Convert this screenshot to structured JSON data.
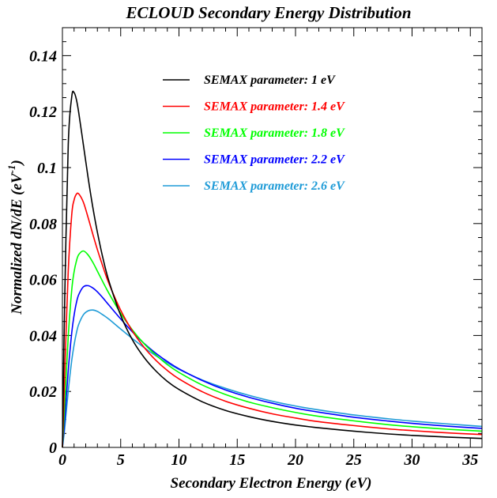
{
  "chart_data": {
    "type": "line",
    "title": "ECLOUD Secondary Energy Distribution",
    "xlabel": "Secondary Electron Energy (eV)",
    "ylabel": "Normalized dN/dE (eV",
    "ylabel_sup": "-1",
    "ylabel_suffix": ")",
    "xlim": [
      0,
      36
    ],
    "ylim": [
      0,
      0.15
    ],
    "x_ticks": [
      0,
      5,
      10,
      15,
      20,
      25,
      30,
      35
    ],
    "x_tick_labels": [
      "0",
      "5",
      "10",
      "15",
      "20",
      "25",
      "30",
      "35"
    ],
    "y_ticks": [
      0,
      0.02,
      0.04,
      0.06,
      0.08,
      0.1,
      0.12,
      0.14
    ],
    "y_tick_labels": [
      "0",
      "0.02",
      "0.04",
      "0.06",
      "0.08",
      "0.1",
      "0.12",
      "0.14"
    ],
    "grid": false,
    "legend_position": "top-right",
    "x": [
      0,
      0.2,
      0.5,
      0.8,
      1,
      1.2,
      1.4,
      1.8,
      2.2,
      2.6,
      3,
      3.5,
      4,
      5,
      6,
      7,
      8,
      9,
      10,
      12,
      14,
      16,
      18,
      20,
      22,
      25,
      28,
      30,
      33,
      36
    ],
    "series": [
      {
        "name": "SEMAX parameter: 1 eV",
        "color": "#000000",
        "values": [
          0,
          0.0535,
          0.1082,
          0.1253,
          0.1268,
          0.1243,
          0.1196,
          0.1081,
          0.0965,
          0.086,
          0.0769,
          0.0672,
          0.0593,
          0.0472,
          0.0385,
          0.0322,
          0.0274,
          0.0236,
          0.0207,
          0.0163,
          0.0132,
          0.011,
          0.0093,
          0.008,
          0.007,
          0.0058,
          0.0048,
          0.0043,
          0.0037,
          0.0032
        ]
      },
      {
        "name": "SEMAX parameter: 1.4 eV",
        "color": "#ff0000",
        "values": [
          0,
          0.0264,
          0.0631,
          0.0832,
          0.0884,
          0.0905,
          0.0906,
          0.0876,
          0.0822,
          0.0763,
          0.0707,
          0.0643,
          0.0585,
          0.049,
          0.0416,
          0.0358,
          0.0312,
          0.0275,
          0.0245,
          0.0199,
          0.0165,
          0.014,
          0.012,
          0.0105,
          0.0092,
          0.0078,
          0.0066,
          0.006,
          0.0052,
          0.0046
        ]
      },
      {
        "name": "SEMAX parameter: 1.8 eV",
        "color": "#00ff00",
        "values": [
          0,
          0.0154,
          0.0397,
          0.0563,
          0.0627,
          0.0666,
          0.0689,
          0.0702,
          0.0688,
          0.0662,
          0.063,
          0.0589,
          0.055,
          0.0479,
          0.042,
          0.0371,
          0.0331,
          0.0296,
          0.0268,
          0.0223,
          0.0189,
          0.0162,
          0.0142,
          0.0125,
          0.0111,
          0.0095,
          0.0081,
          0.0074,
          0.0065,
          0.0058
        ]
      },
      {
        "name": "SEMAX parameter: 2.2 eV",
        "color": "#0000ff",
        "values": [
          0,
          0.0099,
          0.0275,
          0.041,
          0.0472,
          0.0517,
          0.0546,
          0.0574,
          0.0578,
          0.057,
          0.0556,
          0.0533,
          0.0508,
          0.0459,
          0.0413,
          0.0372,
          0.0337,
          0.0307,
          0.0281,
          0.0239,
          0.0205,
          0.0179,
          0.0158,
          0.014,
          0.0126,
          0.0108,
          0.0094,
          0.0086,
          0.0076,
          0.0068
        ]
      },
      {
        "name": "SEMAX parameter: 2.6 eV",
        "color": "#1e9bd7",
        "values": [
          0,
          0.0069,
          0.0201,
          0.0311,
          0.0366,
          0.0409,
          0.044,
          0.0474,
          0.0488,
          0.0491,
          0.0486,
          0.0473,
          0.0458,
          0.0423,
          0.0389,
          0.0357,
          0.0328,
          0.0302,
          0.0279,
          0.0241,
          0.0211,
          0.0186,
          0.0165,
          0.0148,
          0.0134,
          0.0116,
          0.0102,
          0.0094,
          0.0084,
          0.0075
        ]
      }
    ]
  }
}
